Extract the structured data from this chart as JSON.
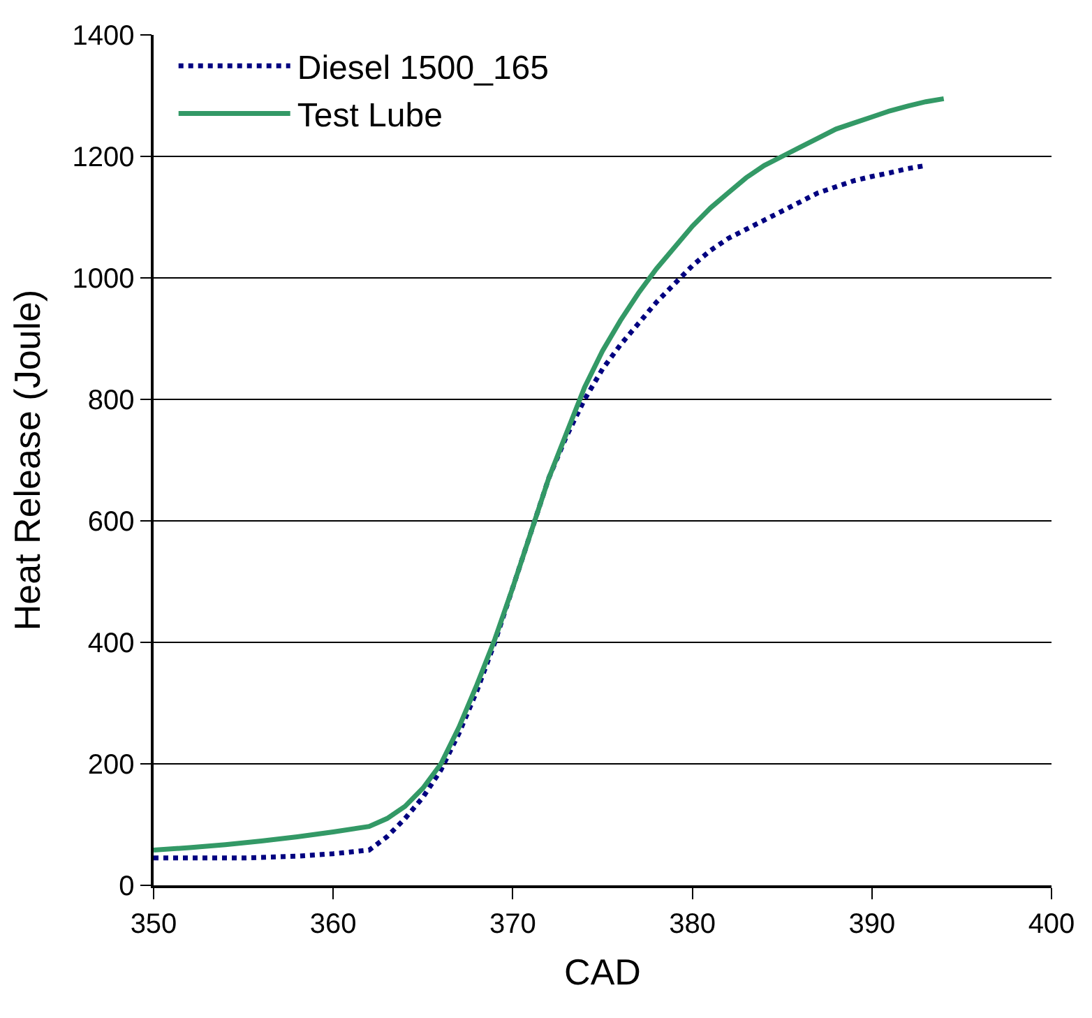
{
  "chart_data": {
    "type": "line",
    "xlabel": "CAD",
    "ylabel": "Heat Release (Joule)",
    "xlim": [
      350,
      400
    ],
    "xticks": [
      350,
      360,
      370,
      380,
      390,
      400
    ],
    "ylim": [
      0,
      1400
    ],
    "yticks": [
      0,
      200,
      400,
      600,
      800,
      1000,
      1200,
      1400
    ],
    "grid": "y",
    "legend": "top left",
    "marker": "none",
    "series": [
      {
        "name": "Diesel 1500_165",
        "color": "#000080",
        "line_style": "dotted",
        "x": [
          350,
          355,
          358,
          360,
          362,
          363,
          364,
          365,
          366,
          367,
          368,
          369,
          370,
          371,
          372,
          373,
          374,
          375,
          376,
          377,
          378,
          379,
          380,
          381,
          382,
          383,
          384,
          385,
          386,
          387,
          388,
          389,
          390,
          391,
          392,
          393
        ],
        "values": [
          45,
          45,
          48,
          52,
          58,
          80,
          110,
          145,
          190,
          250,
          320,
          400,
          490,
          580,
          670,
          740,
          800,
          850,
          890,
          925,
          960,
          990,
          1020,
          1045,
          1065,
          1080,
          1095,
          1110,
          1125,
          1140,
          1150,
          1160,
          1167,
          1173,
          1180,
          1185
        ]
      },
      {
        "name": "Test Lube",
        "color": "#339966",
        "line_style": "solid",
        "x": [
          350,
          352,
          354,
          356,
          358,
          360,
          362,
          363,
          364,
          365,
          366,
          367,
          368,
          369,
          370,
          371,
          372,
          373,
          374,
          375,
          376,
          377,
          378,
          379,
          380,
          381,
          382,
          383,
          384,
          385,
          386,
          387,
          388,
          389,
          390,
          391,
          392,
          393,
          394
        ],
        "values": [
          58,
          62,
          67,
          73,
          80,
          88,
          97,
          110,
          130,
          160,
          200,
          260,
          330,
          405,
          490,
          580,
          670,
          745,
          820,
          880,
          930,
          975,
          1015,
          1050,
          1085,
          1115,
          1140,
          1165,
          1185,
          1200,
          1215,
          1230,
          1245,
          1255,
          1265,
          1275,
          1283,
          1290,
          1295
        ]
      }
    ]
  }
}
